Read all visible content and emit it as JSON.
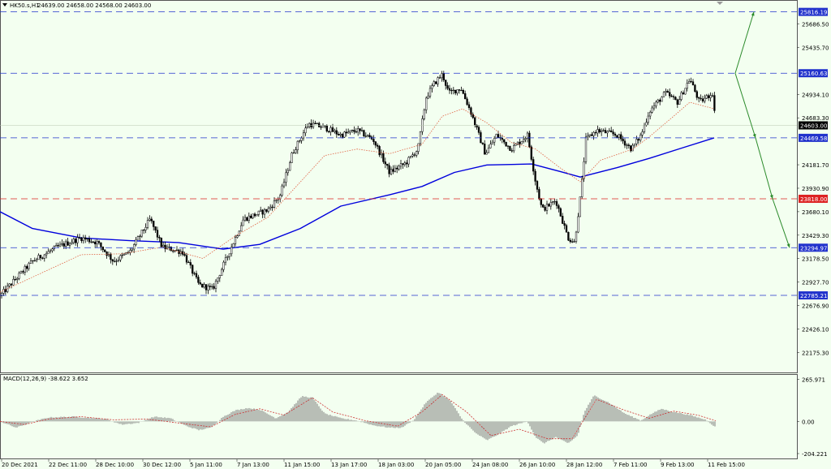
{
  "header": {
    "symbol_info": "HK50.s,H1",
    "ohlc_info": "24639.00 24658.00 24568.00 24603.00",
    "macd_info": "MACD(12,26,9) -38.622 3.652"
  },
  "colors": {
    "background": "#f3fff0",
    "candles": "#000000",
    "ma_fast": "#e06040",
    "ma_slow": "#0000dd",
    "hline_blue": "#2233cc",
    "hline_red": "#dd2222",
    "arrows": "#2a8a2a",
    "macd_hist": "#888888",
    "macd_signal": "#cc3333"
  },
  "chart_data": [
    {
      "type": "candlestick",
      "timeframe": "H1",
      "ylim": [
        21970,
        25900
      ],
      "y_ticks": [
        "25686.50",
        "25435.70",
        "24934.10",
        "24683.30",
        "24181.70",
        "23930.90",
        "23680.10",
        "23429.30",
        "23178.50",
        "22927.70",
        "22676.90",
        "22426.10",
        "22175.30"
      ],
      "x_ticks": [
        "20 Dec 2021",
        "22 Dec 11:00",
        "28 Dec 10:00",
        "30 Dec 12:00",
        "5 Jan 11:00",
        "7 Jan 13:00",
        "11 Jan 15:00",
        "13 Jan 17:00",
        "18 Jan 03:00",
        "20 Jan 05:00",
        "24 Jan 08:00",
        "26 Jan 10:00",
        "28 Jan 12:00",
        "7 Feb 11:00",
        "9 Feb 13:00",
        "11 Feb 15:00"
      ],
      "horizontal_levels": [
        {
          "value": 25816.19,
          "label": "25816.19",
          "color": "blue",
          "style": "dashed"
        },
        {
          "value": 25160.63,
          "label": "25160.63",
          "color": "blue",
          "style": "dashed"
        },
        {
          "value": 24469.58,
          "label": "24469.58",
          "color": "blue",
          "style": "dashed"
        },
        {
          "value": 23818.0,
          "label": "23818.00",
          "color": "red",
          "style": "dashed"
        },
        {
          "value": 23294.97,
          "label": "23294.97",
          "color": "blue",
          "style": "dashed"
        },
        {
          "value": 22785.21,
          "label": "22785.21",
          "color": "blue",
          "style": "dashed"
        }
      ],
      "current_price": {
        "value": 24603.0,
        "label": "24603.00"
      },
      "close_path_keypoints": [
        [
          0,
          22780
        ],
        [
          18,
          22950
        ],
        [
          40,
          23150
        ],
        [
          70,
          23300
        ],
        [
          100,
          23400
        ],
        [
          120,
          23350
        ],
        [
          140,
          23150
        ],
        [
          160,
          23250
        ],
        [
          185,
          23600
        ],
        [
          200,
          23300
        ],
        [
          225,
          23250
        ],
        [
          245,
          22900
        ],
        [
          262,
          22850
        ],
        [
          280,
          23200
        ],
        [
          300,
          23600
        ],
        [
          330,
          23700
        ],
        [
          345,
          23850
        ],
        [
          360,
          24300
        ],
        [
          380,
          24620
        ],
        [
          400,
          24580
        ],
        [
          420,
          24500
        ],
        [
          440,
          24550
        ],
        [
          460,
          24450
        ],
        [
          480,
          24100
        ],
        [
          500,
          24200
        ],
        [
          515,
          24350
        ],
        [
          525,
          24900
        ],
        [
          535,
          25050
        ],
        [
          545,
          25150
        ],
        [
          553,
          24950
        ],
        [
          568,
          25000
        ],
        [
          580,
          24750
        ],
        [
          598,
          24300
        ],
        [
          612,
          24500
        ],
        [
          630,
          24350
        ],
        [
          650,
          24500
        ],
        [
          660,
          24000
        ],
        [
          668,
          23700
        ],
        [
          685,
          23800
        ],
        [
          700,
          23400
        ],
        [
          708,
          23350
        ],
        [
          716,
          23900
        ],
        [
          722,
          24450
        ],
        [
          735,
          24550
        ],
        [
          760,
          24500
        ],
        [
          778,
          24350
        ],
        [
          790,
          24500
        ],
        [
          800,
          24750
        ],
        [
          820,
          24950
        ],
        [
          835,
          24850
        ],
        [
          850,
          25100
        ],
        [
          862,
          24850
        ],
        [
          878,
          24950
        ],
        [
          882,
          24603
        ]
      ],
      "series": [
        {
          "name": "",
          "kind": "moving_average_fast",
          "keypoints": [
            [
              0,
              22820
            ],
            [
              50,
              23020
            ],
            [
              100,
              23220
            ],
            [
              150,
              23230
            ],
            [
              200,
              23300
            ],
            [
              250,
              23180
            ],
            [
              290,
              23420
            ],
            [
              330,
              23620
            ],
            [
              365,
              23950
            ],
            [
              400,
              24280
            ],
            [
              440,
              24350
            ],
            [
              480,
              24300
            ],
            [
              520,
              24400
            ],
            [
              545,
              24700
            ],
            [
              570,
              24780
            ],
            [
              600,
              24630
            ],
            [
              630,
              24420
            ],
            [
              660,
              24350
            ],
            [
              690,
              24150
            ],
            [
              715,
              24000
            ],
            [
              740,
              24230
            ],
            [
              780,
              24350
            ],
            [
              800,
              24480
            ],
            [
              830,
              24700
            ],
            [
              850,
              24850
            ],
            [
              880,
              24780
            ]
          ]
        },
        {
          "name": "",
          "kind": "moving_average_slow",
          "keypoints": [
            [
              0,
              23680
            ],
            [
              40,
              23500
            ],
            [
              100,
              23400
            ],
            [
              160,
              23370
            ],
            [
              220,
              23350
            ],
            [
              275,
              23280
            ],
            [
              320,
              23330
            ],
            [
              370,
              23500
            ],
            [
              420,
              23740
            ],
            [
              480,
              23860
            ],
            [
              520,
              23950
            ],
            [
              560,
              24100
            ],
            [
              600,
              24180
            ],
            [
              655,
              24190
            ],
            [
              690,
              24110
            ],
            [
              715,
              24050
            ],
            [
              760,
              24150
            ],
            [
              800,
              24250
            ],
            [
              840,
              24360
            ],
            [
              880,
              24469
            ]
          ]
        }
      ]
    },
    {
      "type": "bar",
      "indicator": "MACD(12,26,9)",
      "ylim": [
        -230,
        290
      ],
      "y_ticks": [
        "265.971",
        "0.00",
        "-204.221"
      ],
      "histogram_keypoints": [
        [
          0,
          0
        ],
        [
          20,
          -40
        ],
        [
          45,
          5
        ],
        [
          60,
          25
        ],
        [
          90,
          30
        ],
        [
          130,
          15
        ],
        [
          150,
          -20
        ],
        [
          170,
          -10
        ],
        [
          190,
          30
        ],
        [
          210,
          20
        ],
        [
          230,
          -30
        ],
        [
          245,
          -55
        ],
        [
          260,
          -40
        ],
        [
          275,
          30
        ],
        [
          290,
          70
        ],
        [
          305,
          85
        ],
        [
          320,
          75
        ],
        [
          340,
          20
        ],
        [
          355,
          60
        ],
        [
          372,
          160
        ],
        [
          385,
          150
        ],
        [
          400,
          50
        ],
        [
          420,
          20
        ],
        [
          440,
          5
        ],
        [
          460,
          -25
        ],
        [
          480,
          -40
        ],
        [
          495,
          -40
        ],
        [
          510,
          10
        ],
        [
          525,
          120
        ],
        [
          540,
          185
        ],
        [
          555,
          130
        ],
        [
          570,
          10
        ],
        [
          585,
          -70
        ],
        [
          600,
          -120
        ],
        [
          615,
          -80
        ],
        [
          630,
          -30
        ],
        [
          650,
          0
        ],
        [
          660,
          -100
        ],
        [
          670,
          -140
        ],
        [
          685,
          -100
        ],
        [
          700,
          -140
        ],
        [
          712,
          -90
        ],
        [
          720,
          60
        ],
        [
          732,
          165
        ],
        [
          750,
          120
        ],
        [
          770,
          50
        ],
        [
          790,
          5
        ],
        [
          800,
          40
        ],
        [
          815,
          80
        ],
        [
          830,
          60
        ],
        [
          850,
          40
        ],
        [
          870,
          10
        ],
        [
          882,
          -38
        ]
      ],
      "signal_keypoints": [
        [
          0,
          0
        ],
        [
          30,
          -20
        ],
        [
          60,
          15
        ],
        [
          100,
          30
        ],
        [
          140,
          10
        ],
        [
          180,
          15
        ],
        [
          220,
          -10
        ],
        [
          260,
          -35
        ],
        [
          290,
          45
        ],
        [
          320,
          80
        ],
        [
          350,
          40
        ],
        [
          385,
          150
        ],
        [
          410,
          60
        ],
        [
          450,
          5
        ],
        [
          490,
          -30
        ],
        [
          520,
          60
        ],
        [
          545,
          170
        ],
        [
          575,
          60
        ],
        [
          605,
          -90
        ],
        [
          640,
          -50
        ],
        [
          675,
          -110
        ],
        [
          705,
          -110
        ],
        [
          735,
          140
        ],
        [
          770,
          70
        ],
        [
          800,
          20
        ],
        [
          830,
          65
        ],
        [
          860,
          40
        ],
        [
          882,
          4
        ]
      ]
    }
  ]
}
